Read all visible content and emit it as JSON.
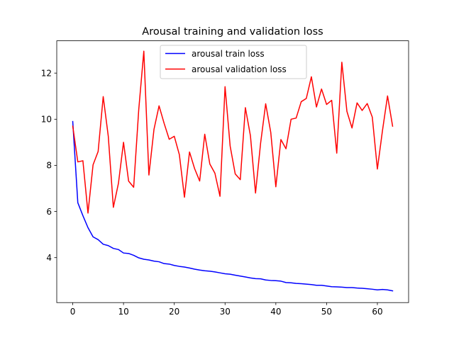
{
  "chart_data": {
    "type": "line",
    "title": "Arousal training and validation loss",
    "xlabel": "",
    "ylabel": "",
    "xlim": [
      -3.15,
      66.15
    ],
    "ylim": [
      2.05,
      13.4
    ],
    "xticks": [
      0,
      10,
      20,
      30,
      40,
      50,
      60
    ],
    "yticks": [
      4,
      6,
      8,
      10,
      12
    ],
    "grid": false,
    "legend_position": "top-center",
    "series": [
      {
        "name": "arousal train loss",
        "color": "#0000ff",
        "x": [
          0,
          1,
          2,
          3,
          4,
          5,
          6,
          7,
          8,
          9,
          10,
          11,
          12,
          13,
          14,
          15,
          16,
          17,
          18,
          19,
          20,
          21,
          22,
          23,
          24,
          25,
          26,
          27,
          28,
          29,
          30,
          31,
          32,
          33,
          34,
          35,
          36,
          37,
          38,
          39,
          40,
          41,
          42,
          43,
          44,
          45,
          46,
          47,
          48,
          49,
          50,
          51,
          52,
          53,
          54,
          55,
          56,
          57,
          58,
          59,
          60,
          61,
          62,
          63
        ],
        "values": [
          9.9,
          6.38,
          5.82,
          5.3,
          4.9,
          4.78,
          4.58,
          4.52,
          4.4,
          4.35,
          4.2,
          4.18,
          4.1,
          3.99,
          3.93,
          3.9,
          3.85,
          3.82,
          3.74,
          3.72,
          3.66,
          3.62,
          3.59,
          3.55,
          3.5,
          3.46,
          3.43,
          3.41,
          3.38,
          3.34,
          3.3,
          3.28,
          3.24,
          3.2,
          3.16,
          3.12,
          3.09,
          3.08,
          3.03,
          3.01,
          3.0,
          2.98,
          2.92,
          2.91,
          2.88,
          2.87,
          2.85,
          2.83,
          2.8,
          2.8,
          2.77,
          2.74,
          2.73,
          2.72,
          2.7,
          2.7,
          2.68,
          2.67,
          2.65,
          2.63,
          2.6,
          2.62,
          2.6,
          2.56
        ]
      },
      {
        "name": "arousal validation loss",
        "color": "#ff0000",
        "x": [
          0,
          1,
          2,
          3,
          4,
          5,
          6,
          7,
          8,
          9,
          10,
          11,
          12,
          13,
          14,
          15,
          16,
          17,
          18,
          19,
          20,
          21,
          22,
          23,
          24,
          25,
          26,
          27,
          28,
          29,
          30,
          31,
          32,
          33,
          34,
          35,
          36,
          37,
          38,
          39,
          40,
          41,
          42,
          43,
          44,
          45,
          46,
          47,
          48,
          49,
          50,
          51,
          52,
          53,
          54,
          55,
          56,
          57,
          58,
          59,
          60,
          61,
          62,
          63
        ],
        "values": [
          9.7,
          8.15,
          8.2,
          5.93,
          8.02,
          8.6,
          10.98,
          9.26,
          6.18,
          7.22,
          9.0,
          7.32,
          7.05,
          10.42,
          12.95,
          7.58,
          9.56,
          10.58,
          9.82,
          9.13,
          9.26,
          8.46,
          6.62,
          8.58,
          7.86,
          7.32,
          9.35,
          8.06,
          7.66,
          6.66,
          11.41,
          8.84,
          7.63,
          7.38,
          10.5,
          9.28,
          6.8,
          8.96,
          10.67,
          9.43,
          7.07,
          9.12,
          8.72,
          10.0,
          10.05,
          10.76,
          10.9,
          11.84,
          10.53,
          11.31,
          10.64,
          10.82,
          8.53,
          12.47,
          10.34,
          9.62,
          10.71,
          10.38,
          10.68,
          10.09,
          7.84,
          9.5,
          11.01,
          9.7
        ]
      }
    ]
  }
}
